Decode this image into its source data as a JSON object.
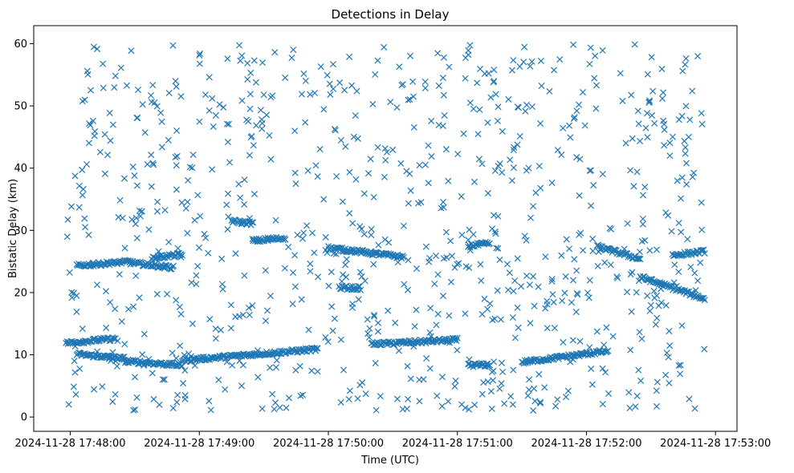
{
  "chart_data": {
    "type": "scatter",
    "title": "Detections in Delay",
    "xlabel": "Time (UTC)",
    "ylabel": "Bistatic Delay (km)",
    "marker": "x",
    "color": "#1f77b4",
    "grid": false,
    "xlim": [
      "2024-11-28 17:47:43",
      "2024-11-28 17:53:10"
    ],
    "ylim": [
      -2.3,
      62.9
    ],
    "x_ticks": [
      "2024-11-28 17:48:00",
      "2024-11-28 17:49:00",
      "2024-11-28 17:50:00",
      "2024-11-28 17:51:00",
      "2024-11-28 17:52:00",
      "2024-11-28 17:53:00"
    ],
    "y_ticks": [
      0,
      10,
      20,
      30,
      40,
      50,
      60
    ],
    "data_window": [
      "2024-11-28 17:47:58",
      "2024-11-28 17:52:55"
    ],
    "tracks": [
      {
        "start": "2024-11-28 17:47:58",
        "end": "2024-11-28 17:48:21",
        "delay_start": 11.9,
        "delay_end": 12.6
      },
      {
        "start": "2024-11-28 17:48:03",
        "end": "2024-11-28 17:48:25",
        "delay_start": 10.1,
        "delay_end": 9.4
      },
      {
        "start": "2024-11-28 17:48:25",
        "end": "2024-11-28 17:48:52",
        "delay_start": 9.0,
        "delay_end": 8.3
      },
      {
        "start": "2024-11-28 17:48:52",
        "end": "2024-11-28 17:49:55",
        "delay_start": 9.1,
        "delay_end": 10.9
      },
      {
        "start": "2024-11-28 17:48:03",
        "end": "2024-11-28 17:48:28",
        "delay_start": 24.3,
        "delay_end": 25.0
      },
      {
        "start": "2024-11-28 17:48:28",
        "end": "2024-11-28 17:48:48",
        "delay_start": 24.8,
        "delay_end": 24.0
      },
      {
        "start": "2024-11-28 17:48:38",
        "end": "2024-11-28 17:48:52",
        "delay_start": 25.6,
        "delay_end": 26.1
      },
      {
        "start": "2024-11-28 17:49:15",
        "end": "2024-11-28 17:49:25",
        "delay_start": 31.5,
        "delay_end": 31.1
      },
      {
        "start": "2024-11-28 17:49:25",
        "end": "2024-11-28 17:49:40",
        "delay_start": 28.3,
        "delay_end": 28.8
      },
      {
        "start": "2024-11-28 17:50:00",
        "end": "2024-11-28 17:50:35",
        "delay_start": 27.2,
        "delay_end": 25.7
      },
      {
        "start": "2024-11-28 17:50:05",
        "end": "2024-11-28 17:50:15",
        "delay_start": 20.8,
        "delay_end": 20.7
      },
      {
        "start": "2024-11-28 17:50:20",
        "end": "2024-11-28 17:51:00",
        "delay_start": 11.7,
        "delay_end": 12.4
      },
      {
        "start": "2024-11-28 17:51:05",
        "end": "2024-11-28 17:51:15",
        "delay_start": 27.5,
        "delay_end": 27.9
      },
      {
        "start": "2024-11-28 17:51:05",
        "end": "2024-11-28 17:51:15",
        "delay_start": 8.3,
        "delay_end": 8.4
      },
      {
        "start": "2024-11-28 17:51:30",
        "end": "2024-11-28 17:52:10",
        "delay_start": 8.8,
        "delay_end": 10.6
      },
      {
        "start": "2024-11-28 17:52:05",
        "end": "2024-11-28 17:52:25",
        "delay_start": 27.4,
        "delay_end": 25.4
      },
      {
        "start": "2024-11-28 17:52:25",
        "end": "2024-11-28 17:52:55",
        "delay_start": 22.5,
        "delay_end": 19.0
      },
      {
        "start": "2024-11-28 17:52:40",
        "end": "2024-11-28 17:52:55",
        "delay_start": 26.0,
        "delay_end": 26.6
      }
    ],
    "scatter_noise": {
      "count": 880,
      "delay_min": 1.0,
      "delay_max": 60.0
    }
  }
}
